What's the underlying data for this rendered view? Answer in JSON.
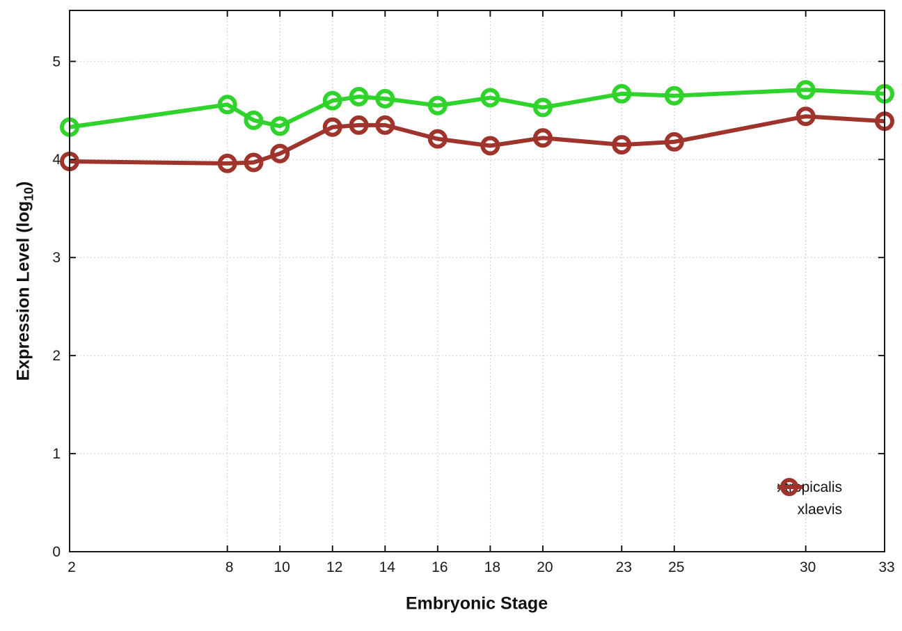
{
  "chart_data": {
    "type": "line",
    "title": "",
    "xlabel": "Embryonic Stage",
    "ylabel": "Expression Level (log10)",
    "ylabel_parts": {
      "pre": "Expression Level (log",
      "sub": "10",
      "post": ")"
    },
    "x": [
      2,
      8,
      9,
      10,
      12,
      13,
      14,
      16,
      18,
      20,
      23,
      25,
      30,
      33
    ],
    "x_ticks": [
      2,
      8,
      10,
      12,
      14,
      16,
      18,
      20,
      23,
      25,
      30,
      33
    ],
    "x_tick_labels": [
      "2",
      "8",
      "10",
      "12",
      "14",
      "16",
      "18",
      "20",
      "23",
      "25",
      "30",
      "33"
    ],
    "y_ticks": [
      0,
      1,
      2,
      3,
      4,
      5
    ],
    "y_tick_labels": [
      "0",
      "1",
      "2",
      "3",
      "4",
      "5"
    ],
    "xlim": [
      2,
      33
    ],
    "ylim": [
      0,
      5.52
    ],
    "grid": true,
    "grid_style": "dotted",
    "grid_color": "#cccccc",
    "axis_color": "#1a1a1a",
    "background_color": "#ffffff",
    "marker": "open-circle",
    "legend_position": "inside-bottom-right",
    "series": [
      {
        "name": "xtropicalis",
        "color": "#2fd32c",
        "values": [
          4.33,
          4.56,
          4.4,
          4.34,
          4.6,
          4.64,
          4.62,
          4.55,
          4.63,
          4.53,
          4.67,
          4.65,
          4.71,
          4.67
        ]
      },
      {
        "name": "xlaevis",
        "color": "#9e342c",
        "values": [
          3.98,
          3.96,
          3.97,
          4.06,
          4.33,
          4.35,
          4.35,
          4.21,
          4.14,
          4.22,
          4.15,
          4.18,
          4.44,
          4.39
        ]
      }
    ]
  }
}
